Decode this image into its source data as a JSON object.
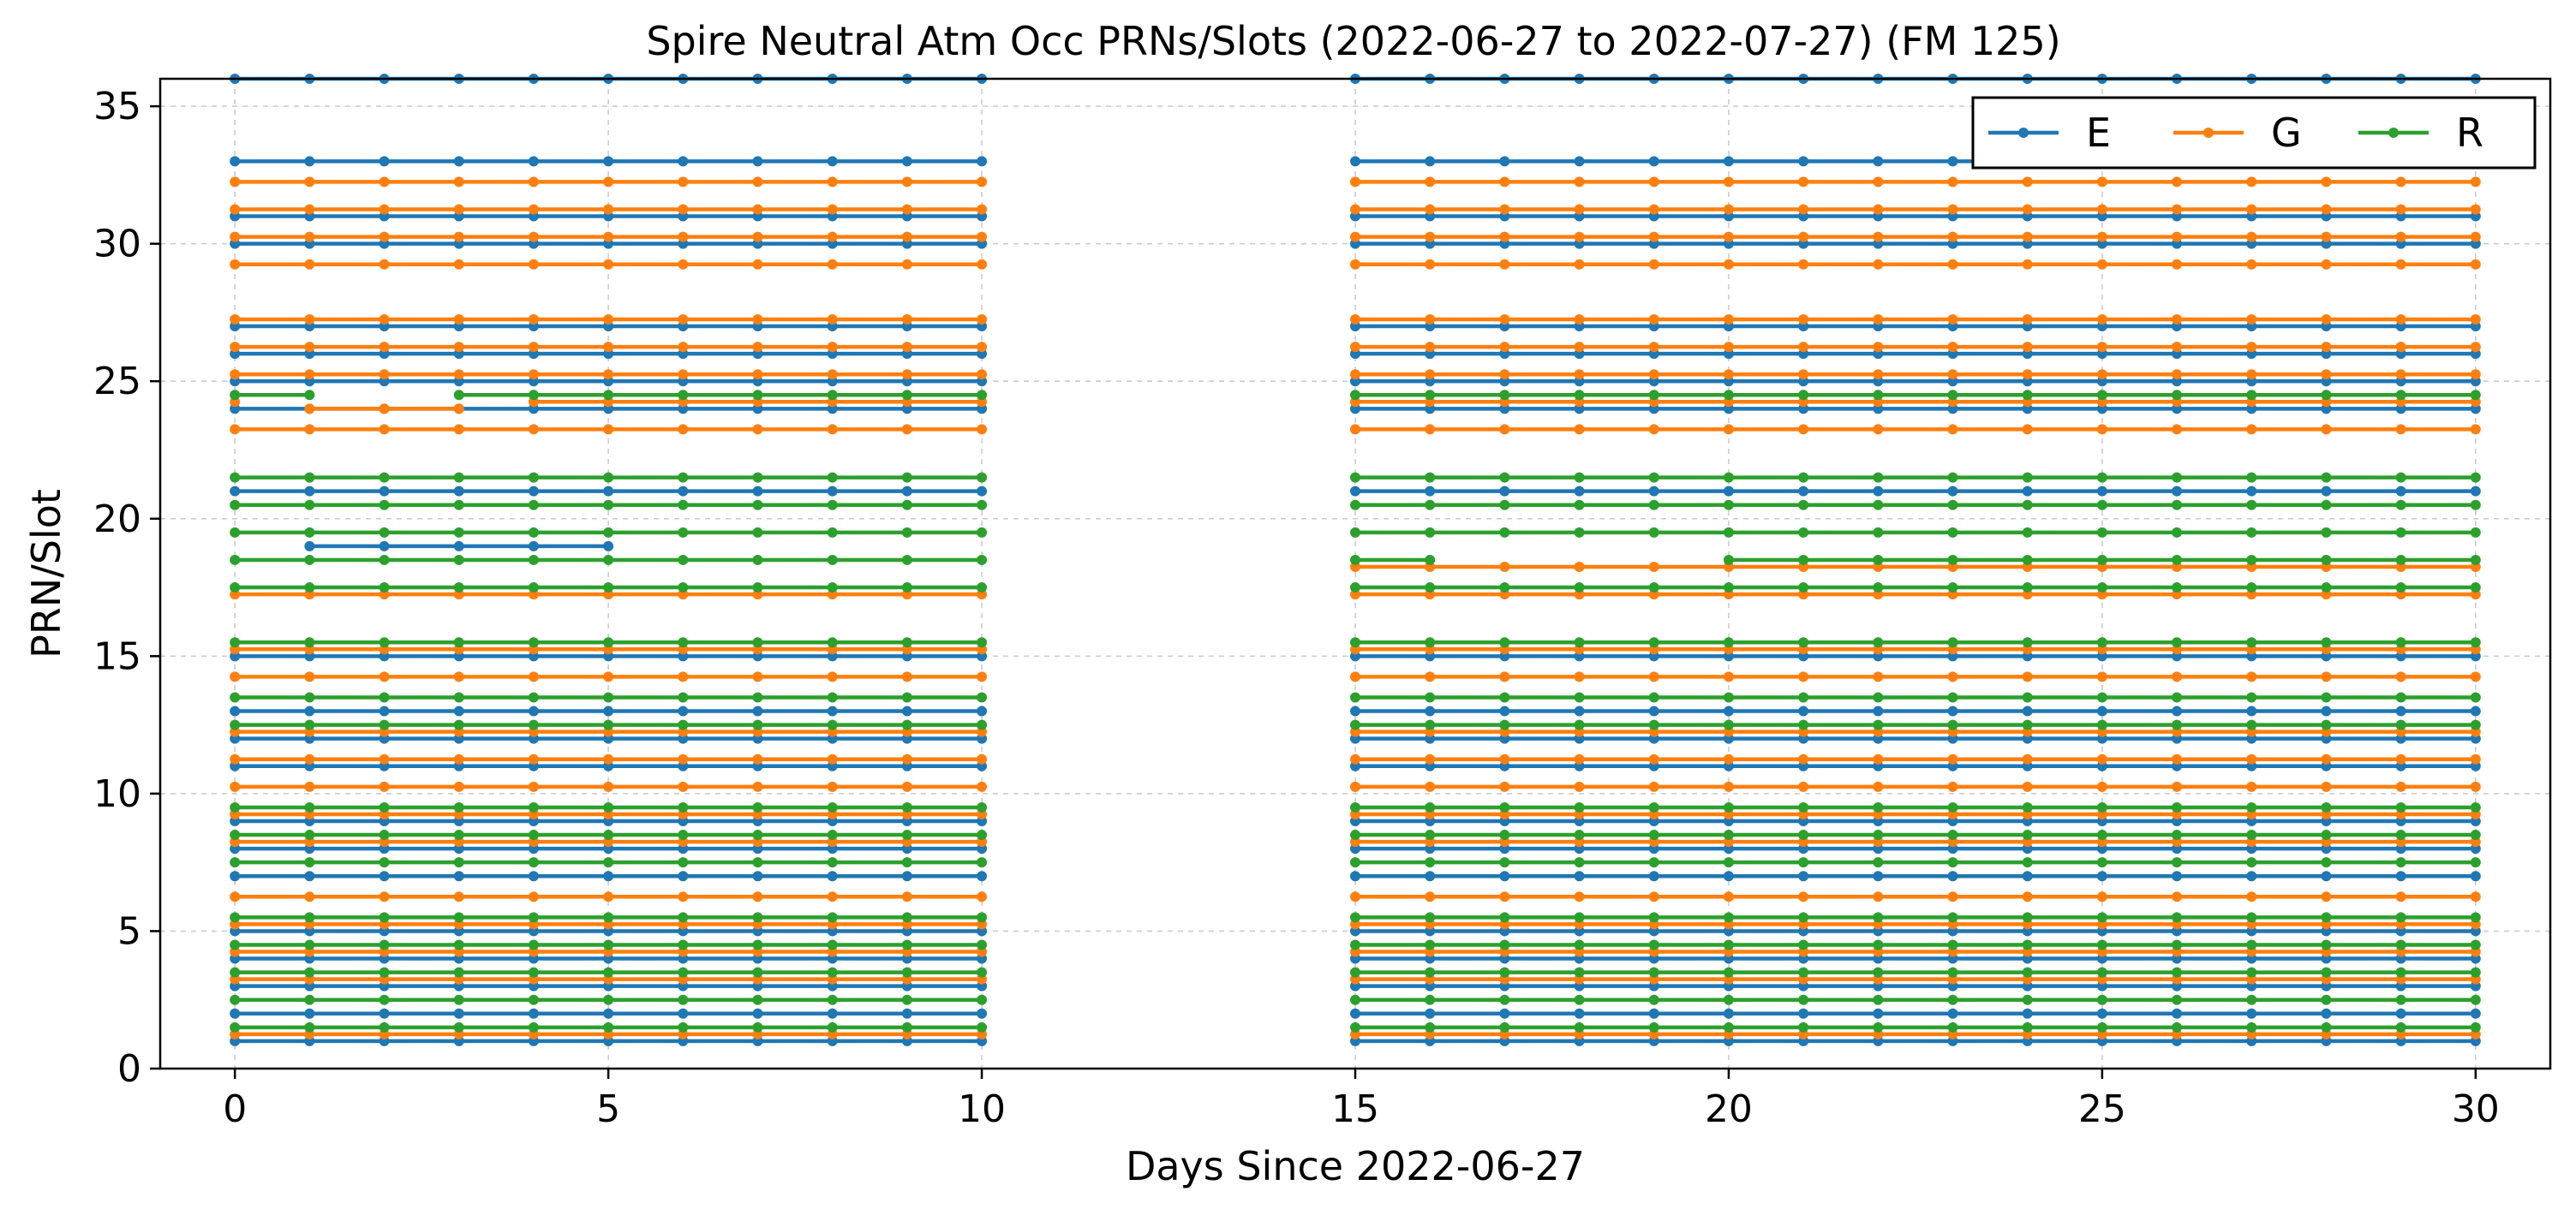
{
  "chart_data": {
    "type": "line",
    "title": "Spire Neutral Atm Occ PRNs/Slots (2022-06-27 to 2022-07-27) (FM 125)",
    "xlabel": "Days Since 2022-06-27",
    "ylabel": "PRN/Slot",
    "xlim": [
      -1,
      31
    ],
    "ylim": [
      0,
      36
    ],
    "xticks": [
      0,
      5,
      10,
      15,
      20,
      25,
      30
    ],
    "yticks": [
      0,
      5,
      10,
      15,
      20,
      25,
      30,
      35
    ],
    "grid": true,
    "legend_placement": "top-right",
    "days": [
      0,
      1,
      2,
      3,
      4,
      5,
      6,
      7,
      8,
      9,
      10,
      15,
      16,
      17,
      18,
      19,
      20,
      21,
      22,
      23,
      24,
      25,
      26,
      27,
      28,
      29,
      30
    ],
    "series": [
      {
        "name": "E",
        "color": "#1f77b4",
        "prns": [
          1,
          2,
          3,
          4,
          5,
          7,
          8,
          9,
          11,
          12,
          13,
          15,
          21,
          24,
          25,
          26,
          27,
          30,
          31,
          33,
          36
        ],
        "extra_lines": [
          {
            "prn": 19,
            "days": [
              1,
              2,
              3,
              4,
              5
            ]
          }
        ],
        "partial_lines": [
          {
            "prn": 33,
            "days": [
              0,
              1,
              2,
              3,
              4,
              5,
              6,
              7,
              8,
              9,
              10,
              15,
              16,
              17,
              18,
              19,
              20,
              21,
              22,
              23,
              24
            ]
          }
        ]
      },
      {
        "name": "G",
        "color": "#ff7f0e",
        "prns": [
          1.25,
          3.25,
          4.25,
          5.25,
          6.25,
          8.25,
          9.25,
          10.25,
          11.25,
          12.25,
          14.25,
          15.25,
          17.25,
          18.25,
          23.25,
          25.25,
          26.25,
          27.25,
          29.25,
          30.25,
          31.25,
          32.25
        ],
        "special_lines": [
          {
            "prn": 24.25,
            "days": [
              0,
              1,
              2,
              3,
              4,
              5,
              6,
              7,
              8,
              9,
              10,
              15,
              16,
              17,
              18,
              19,
              20,
              21,
              22,
              23,
              24,
              25,
              26,
              27,
              28,
              29,
              30
            ],
            "gap_segment": [
              1,
              3
            ]
          },
          {
            "prn": 18.25,
            "days": [
              15,
              16,
              17,
              18,
              19,
              20,
              21,
              22,
              23,
              24,
              25,
              26,
              27,
              28,
              29,
              30
            ]
          }
        ]
      },
      {
        "name": "R",
        "color": "#2ca02c",
        "prns": [
          1.5,
          2.5,
          3.5,
          4.5,
          5.5,
          7.5,
          8.5,
          9.5,
          12.5,
          13.5,
          15.5,
          17.5,
          19.5,
          20.5,
          21.5,
          24.5
        ],
        "notes_lines": [
          {
            "prn": 8.5,
            "days": [
              0,
              1,
              2,
              3,
              4,
              5,
              6,
              7,
              8,
              9,
              10,
              15,
              16,
              17,
              18,
              19,
              20,
              21,
              22,
              23,
              24,
              25,
              26,
              27,
              28,
              29,
              30
            ]
          },
          {
            "prn": 18.5,
            "days": [
              0,
              1,
              2,
              3,
              4,
              5,
              6,
              7,
              8,
              9,
              10,
              15,
              16,
              20,
              21,
              22,
              23,
              24,
              25,
              26,
              27,
              28,
              29,
              30
            ]
          },
          {
            "prn": 24.5,
            "days": [
              0,
              1,
              3,
              4,
              5,
              6,
              7,
              8,
              9,
              10,
              15,
              16,
              17,
              18,
              19,
              20,
              21,
              22,
              23,
              24,
              25,
              26,
              27,
              28,
              29,
              30
            ]
          }
        ]
      }
    ]
  }
}
